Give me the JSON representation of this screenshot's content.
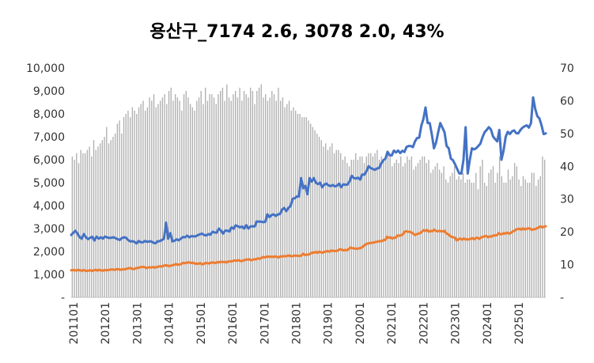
{
  "chart_data": {
    "type": "bar",
    "title": "용산구_7174 2.6, 3078 2.0, 43%",
    "x_tick_labels": [
      "201101",
      "201201",
      "201301",
      "201401",
      "201501",
      "201601",
      "201701",
      "201801",
      "201901",
      "202001",
      "202101",
      "202201",
      "202301",
      "202401",
      "202501"
    ],
    "y_left": {
      "ticks": [
        "-",
        "1,000",
        "2,000",
        "3,000",
        "4,000",
        "5,000",
        "6,000",
        "7,000",
        "8,000",
        "9,000",
        "10,000"
      ],
      "ylim": [
        0,
        10000
      ]
    },
    "y_right": {
      "ticks": [
        "-",
        "10",
        "20",
        "30",
        "40",
        "50",
        "60",
        "70"
      ],
      "ylim": [
        0,
        70
      ]
    },
    "bars_axis": "right",
    "bar_values": [
      43,
      42,
      44,
      41,
      45,
      44,
      44,
      45,
      46,
      43,
      48,
      45,
      46,
      47,
      48,
      49,
      52,
      47,
      48,
      49,
      50,
      53,
      54,
      50,
      55,
      56,
      57,
      55,
      58,
      57,
      56,
      58,
      59,
      60,
      57,
      58,
      61,
      60,
      62,
      58,
      59,
      60,
      61,
      62,
      59,
      63,
      64,
      60,
      62,
      61,
      60,
      57,
      62,
      63,
      61,
      59,
      58,
      57,
      60,
      61,
      63,
      59,
      64,
      60,
      62,
      62,
      61,
      59,
      62,
      63,
      64,
      60,
      65,
      61,
      60,
      62,
      63,
      61,
      64,
      60,
      63,
      62,
      61,
      64,
      63,
      59,
      63,
      64,
      65,
      61,
      62,
      60,
      61,
      63,
      62,
      60,
      64,
      60,
      61,
      58,
      59,
      60,
      57,
      58,
      57,
      56,
      56,
      55,
      55,
      55,
      54,
      53,
      52,
      51,
      50,
      49,
      48,
      46,
      47,
      45,
      46,
      47,
      44,
      45,
      45,
      44,
      42,
      43,
      41,
      40,
      42,
      42,
      44,
      42,
      43,
      43,
      41,
      43,
      44,
      44,
      43,
      44,
      45,
      42,
      43,
      42,
      43,
      44,
      43,
      40,
      41,
      42,
      41,
      43,
      40,
      41,
      43,
      42,
      43,
      39,
      40,
      41,
      42,
      43,
      43,
      41,
      42,
      38,
      39,
      40,
      41,
      39,
      38,
      40,
      36,
      35,
      37,
      38,
      40,
      36,
      37,
      36,
      38,
      35,
      36,
      36,
      35,
      35,
      38,
      33,
      40,
      42,
      35,
      34,
      38,
      39,
      40,
      35,
      38,
      43,
      37,
      35,
      35,
      39,
      36,
      37,
      41,
      40,
      36,
      34,
      37,
      36,
      35,
      35,
      38,
      38,
      34,
      36,
      37,
      43,
      42
    ],
    "series": [
      {
        "axis": "left",
        "color": "#4472C4",
        "values": [
          2720,
          2820,
          2900,
          2780,
          2620,
          2560,
          2760,
          2620,
          2540,
          2600,
          2640,
          2480,
          2650,
          2560,
          2620,
          2560,
          2650,
          2620,
          2590,
          2600,
          2620,
          2580,
          2540,
          2500,
          2580,
          2620,
          2600,
          2500,
          2440,
          2450,
          2420,
          2350,
          2460,
          2400,
          2400,
          2460,
          2420,
          2440,
          2440,
          2380,
          2360,
          2450,
          2450,
          2500,
          2560,
          3260,
          2560,
          2800,
          2440,
          2470,
          2530,
          2490,
          2560,
          2630,
          2620,
          2690,
          2620,
          2670,
          2660,
          2660,
          2710,
          2750,
          2780,
          2720,
          2700,
          2760,
          2730,
          2860,
          2830,
          2820,
          3000,
          2910,
          2780,
          2910,
          2910,
          2870,
          3050,
          2990,
          3140,
          3100,
          3050,
          3090,
          3000,
          3150,
          3000,
          3090,
          3100,
          3090,
          3310,
          3300,
          3300,
          3280,
          3290,
          3620,
          3500,
          3590,
          3620,
          3550,
          3620,
          3630,
          3830,
          3900,
          3760,
          3900,
          3980,
          4300,
          4320,
          4400,
          4400,
          5200,
          4760,
          4860,
          4500,
          5200,
          5050,
          5200,
          5000,
          4940,
          5000,
          4800,
          4920,
          4960,
          4880,
          4850,
          4900,
          4840,
          4870,
          4960,
          4800,
          4930,
          4910,
          4920,
          5060,
          5300,
          5200,
          5180,
          5220,
          5130,
          5360,
          5350,
          5500,
          5720,
          5640,
          5600,
          5560,
          5620,
          5640,
          5840,
          5980,
          6050,
          6350,
          6200,
          6190,
          6400,
          6320,
          6400,
          6290,
          6390,
          6340,
          6560,
          6600,
          6600,
          6550,
          6800,
          6950,
          6960,
          7480,
          7780,
          8280,
          7600,
          7600,
          7100,
          6500,
          6750,
          7200,
          7600,
          7400,
          7200,
          6600,
          6500,
          6050,
          5980,
          5800,
          5600,
          5400,
          5400,
          6000,
          7420,
          5400,
          6000,
          6500,
          6450,
          6500,
          6600,
          6700,
          6980,
          7200,
          7300,
          7420,
          7320,
          7020,
          6900,
          6800,
          7300,
          6000,
          6400,
          7000,
          7220,
          7120,
          7240,
          7280,
          7160,
          7150,
          7300,
          7400,
          7460,
          7500,
          7400,
          7600,
          8720,
          8220,
          7900,
          7800,
          7500,
          7120,
          7150
        ]
      },
      {
        "axis": "left",
        "color": "#ED7D31",
        "values": [
          1180,
          1190,
          1180,
          1170,
          1200,
          1180,
          1160,
          1190,
          1170,
          1150,
          1170,
          1180,
          1150,
          1180,
          1200,
          1170,
          1200,
          1180,
          1160,
          1190,
          1180,
          1190,
          1200,
          1220,
          1210,
          1200,
          1230,
          1230,
          1200,
          1220,
          1220,
          1230,
          1250,
          1270,
          1280,
          1240,
          1230,
          1270,
          1280,
          1300,
          1320,
          1330,
          1320,
          1280,
          1300,
          1310,
          1300,
          1320,
          1300,
          1320,
          1340,
          1360,
          1340,
          1380,
          1400,
          1390,
          1360,
          1380,
          1400,
          1420,
          1450,
          1420,
          1430,
          1450,
          1500,
          1490,
          1510,
          1520,
          1520,
          1500,
          1510,
          1460,
          1480,
          1460,
          1490,
          1440,
          1460,
          1500,
          1490,
          1480,
          1510,
          1520,
          1510,
          1500,
          1540,
          1530,
          1550,
          1540,
          1550,
          1520,
          1560,
          1570,
          1570,
          1600,
          1610,
          1600,
          1620,
          1580,
          1590,
          1620,
          1640,
          1650,
          1660,
          1620,
          1640,
          1660,
          1660,
          1700,
          1680,
          1720,
          1760,
          1740,
          1770,
          1780,
          1760,
          1780,
          1760,
          1790,
          1760,
          1740,
          1790,
          1780,
          1800,
          1790,
          1810,
          1830,
          1790,
          1800,
          1820,
          1820,
          1810,
          1800,
          1830,
          1900,
          1850,
          1860,
          1860,
          1900,
          1950,
          1950,
          1980,
          1940,
          1990,
          1970,
          1950,
          1980,
          2000,
          2020,
          1990,
          2040,
          2030,
          2020,
          2020,
          2050,
          2100,
          2080,
          2050,
          2070,
          2050,
          2100,
          2170,
          2150,
          2130,
          2130,
          2120,
          2140,
          2150,
          2200,
          2260,
          2320,
          2350,
          2360,
          2380,
          2380,
          2410,
          2420,
          2440,
          2450,
          2450,
          2500,
          2500,
          2640,
          2600,
          2620,
          2560,
          2600,
          2600,
          2700,
          2690,
          2700,
          2740,
          2860,
          2880,
          2860,
          2860,
          2830,
          2780,
          2720,
          2750,
          2780,
          2800,
          2860,
          2930,
          2900,
          2940,
          2860,
          2900,
          2880,
          2950,
          2900,
          2880,
          2900,
          2880,
          2880,
          2900,
          2790,
          2760,
          2690,
          2640,
          2620,
          2600,
          2480,
          2540,
          2560,
          2520,
          2570,
          2520,
          2540,
          2520,
          2560,
          2580,
          2530,
          2590,
          2600,
          2550,
          2620,
          2640,
          2660,
          2680,
          2620,
          2660,
          2650,
          2700,
          2700,
          2710,
          2800,
          2750,
          2760,
          2800,
          2780,
          2820,
          2780,
          2810,
          2870,
          2900,
          2960,
          2980,
          2990,
          2950,
          3010,
          2960,
          2990,
          3010,
          3000,
          2940,
          2970,
          2980,
          3010,
          3050,
          3100,
          3050,
          3080,
          3100
        ]
      }
    ]
  }
}
